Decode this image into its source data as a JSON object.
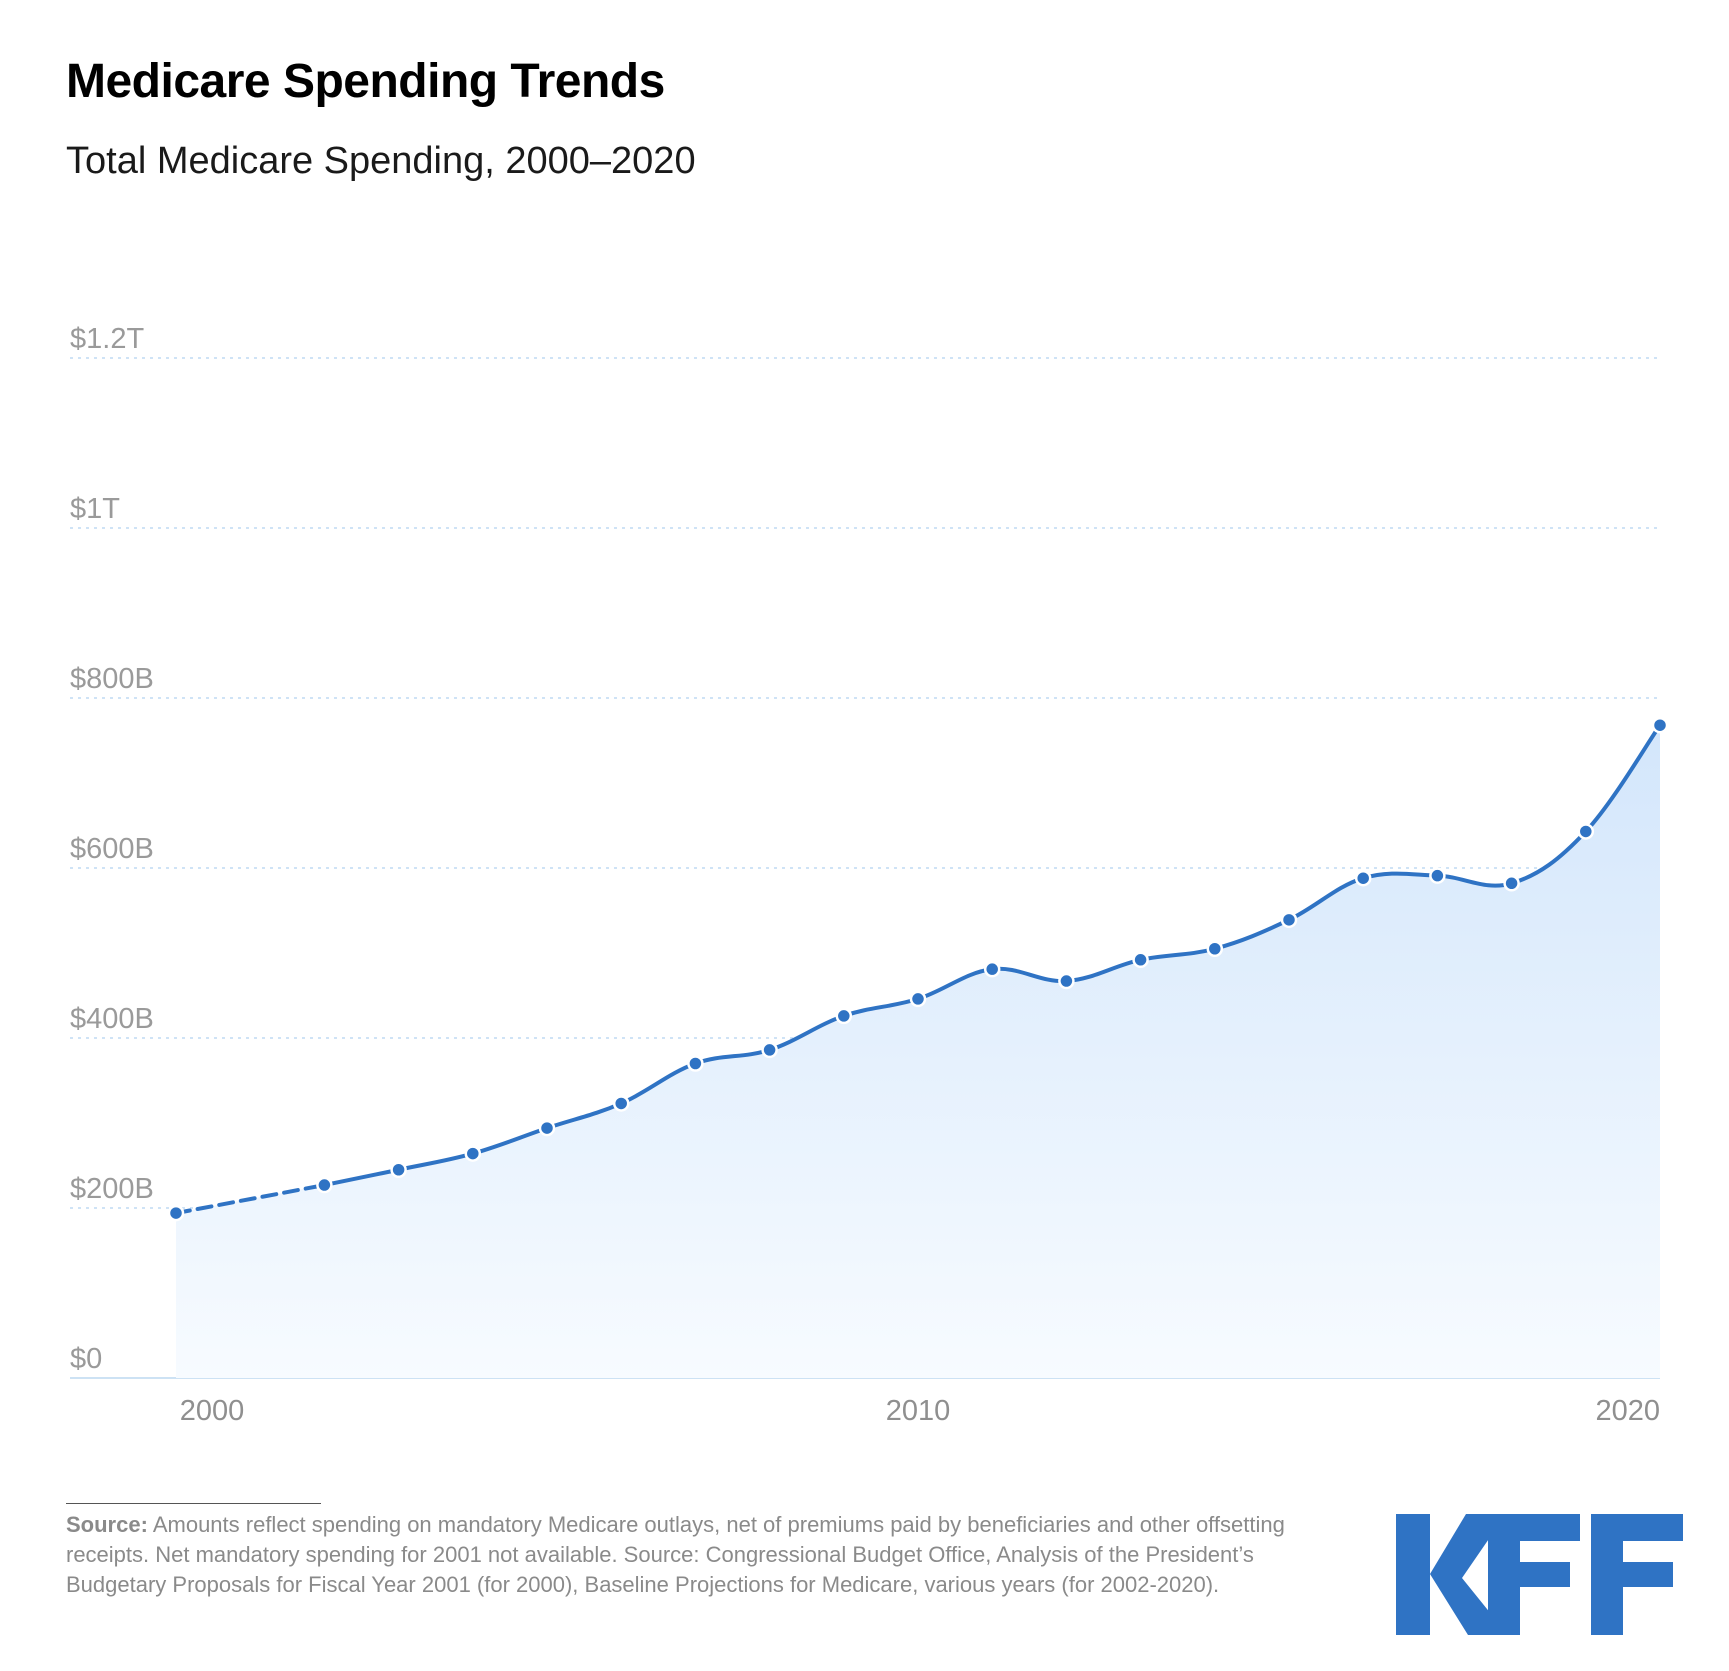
{
  "header": {
    "title": "Medicare Spending Trends",
    "subtitle": "Total Medicare Spending, 2000–2020"
  },
  "chart_data": {
    "type": "area",
    "title": "Medicare Spending Trends",
    "subtitle": "Total Medicare Spending, 2000–2020",
    "xlabel": "",
    "ylabel": "",
    "x_ticks": [
      "2000",
      "2010",
      "2020"
    ],
    "y_ticks": [
      "$0",
      "$200B",
      "$400B",
      "$600B",
      "$800B",
      "$1T",
      "$1.2T"
    ],
    "y_tick_values": [
      0,
      200,
      400,
      600,
      800,
      1000,
      1200
    ],
    "y_unit": "billions of dollars",
    "ylim": [
      0,
      1200
    ],
    "xlim": [
      2000,
      2020
    ],
    "grid": true,
    "gap_year": 2001,
    "x": [
      2000,
      2002,
      2003,
      2004,
      2005,
      2006,
      2007,
      2008,
      2009,
      2010,
      2011,
      2012,
      2013,
      2014,
      2015,
      2016,
      2017,
      2018,
      2019,
      2020
    ],
    "values": [
      194,
      227,
      245,
      264,
      294,
      323,
      370,
      386,
      426,
      446,
      481,
      467,
      492,
      505,
      539,
      588,
      591,
      582,
      643,
      768
    ],
    "colors": {
      "line": "#2f73c4",
      "fill_top": "#d3e6fb",
      "fill_bottom": "#f7fbff",
      "grid": "#cfe3f6",
      "axis": "#cde2f4"
    }
  },
  "footer": {
    "source_label": "Source:",
    "source_text": "Amounts reflect spending on mandatory Medicare outlays, net of premiums paid by beneficiaries and other offsetting receipts. Net mandatory spending for 2001 not available. Source: Congressional Budget Office, Analysis of the President’s Budgetary Proposals for Fiscal Year 2001 (for 2000), Baseline Projections for Medicare, various years (for 2002-2020)."
  },
  "logo": {
    "text": "KFF",
    "color": "#2f73c4"
  }
}
